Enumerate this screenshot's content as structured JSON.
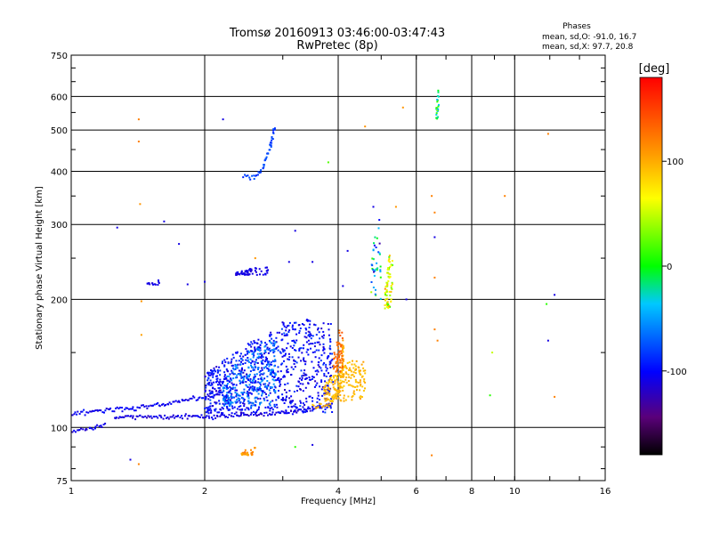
{
  "chart_data": {
    "type": "scatter",
    "title": "Tromsø 20160913 03:46:00-03:47:43",
    "subtitle": "RwPretec (8p)",
    "xlabel": "Frequency [MHz]",
    "ylabel": "Stationary phase Virtual Height [km]",
    "x_scale": "log",
    "y_scale": "log",
    "xlim": [
      1,
      16
    ],
    "ylim": [
      75,
      750
    ],
    "x_ticks": [
      1,
      2,
      4,
      6,
      8,
      10,
      16
    ],
    "x_tick_labels": [
      "1",
      "2",
      "4",
      "6",
      "8",
      "10",
      "16"
    ],
    "y_ticks": [
      75,
      100,
      200,
      300,
      400,
      500,
      600,
      750
    ],
    "y_tick_labels": [
      "75",
      "100",
      "200",
      "300",
      "400",
      "500",
      "600",
      "750"
    ],
    "x_grid": [
      1,
      2,
      4,
      6,
      8,
      10,
      16
    ],
    "y_grid": [
      75,
      100,
      200,
      300,
      400,
      500,
      600,
      750
    ],
    "phases": {
      "heading": "Phases",
      "line_o": "mean, sd,O: -91.0, 16.7",
      "line_x": "mean, sd,X:  97.7, 20.8"
    },
    "colorbar": {
      "label": "[deg]",
      "range": [
        -180,
        180
      ],
      "ticks": [
        100,
        0,
        -100
      ],
      "tick_labels": [
        "100",
        "0",
        "-100"
      ]
    },
    "clusters": [
      {
        "kind": "line",
        "points": [
          [
            1.0,
            98
          ],
          [
            1.08,
            99
          ],
          [
            1.14,
            100
          ],
          [
            1.2,
            102
          ]
        ],
        "width": 6,
        "phase": -110
      },
      {
        "kind": "line",
        "points": [
          [
            1.0,
            107
          ],
          [
            1.1,
            109
          ],
          [
            1.24,
            110
          ],
          [
            1.4,
            111
          ],
          [
            1.6,
            113
          ],
          [
            1.8,
            116
          ],
          [
            2.0,
            118
          ],
          [
            2.2,
            121
          ]
        ],
        "width": 8,
        "phase": -105
      },
      {
        "kind": "line",
        "points": [
          [
            1.25,
            106
          ],
          [
            1.5,
            106
          ],
          [
            1.8,
            106
          ],
          [
            2.1,
            106
          ],
          [
            2.5,
            107
          ],
          [
            2.9,
            108
          ],
          [
            3.2,
            109
          ],
          [
            3.6,
            111
          ],
          [
            3.9,
            114
          ]
        ],
        "width": 7,
        "phase": -110
      },
      {
        "kind": "band",
        "x": [
          2.0,
          3.9
        ],
        "y": [
          108,
          180
        ],
        "n": 900,
        "phase": -100,
        "spread": 30
      },
      {
        "kind": "band",
        "x": [
          2.2,
          2.9
        ],
        "y": [
          112,
          160
        ],
        "n": 200,
        "phase": -60,
        "spread": 20
      },
      {
        "kind": "line",
        "points": [
          [
            3.5,
            112
          ],
          [
            3.75,
            112
          ],
          [
            3.95,
            117
          ],
          [
            4.05,
            125
          ],
          [
            4.1,
            140
          ],
          [
            4.1,
            160
          ]
        ],
        "width": 9,
        "phase": 95
      },
      {
        "kind": "band",
        "x": [
          3.7,
          4.6
        ],
        "y": [
          115,
          145
        ],
        "n": 180,
        "phase": 95,
        "spread": 15
      },
      {
        "kind": "band",
        "x": [
          3.9,
          4.1
        ],
        "y": [
          135,
          170
        ],
        "n": 60,
        "phase": 130,
        "spread": 20
      },
      {
        "kind": "line",
        "points": [
          [
            2.45,
            390
          ],
          [
            2.56,
            385
          ],
          [
            2.7,
            405
          ],
          [
            2.8,
            450
          ],
          [
            2.88,
            510
          ]
        ],
        "width": 10,
        "phase": -80
      },
      {
        "kind": "band",
        "x": [
          2.35,
          2.78
        ],
        "y": [
          228,
          238
        ],
        "n": 60,
        "phase": -110,
        "spread": 10
      },
      {
        "kind": "band",
        "x": [
          5.1,
          5.3
        ],
        "y": [
          190,
          260
        ],
        "n": 70,
        "phase": 60,
        "spread": 70
      },
      {
        "kind": "band",
        "x": [
          4.75,
          5.0
        ],
        "y": [
          200,
          320
        ],
        "n": 40,
        "phase": -40,
        "spread": 120
      },
      {
        "kind": "band",
        "x": [
          6.65,
          6.75
        ],
        "y": [
          530,
          620
        ],
        "n": 25,
        "phase": 0,
        "spread": 60
      },
      {
        "kind": "band",
        "x": [
          2.42,
          2.6
        ],
        "y": [
          86,
          90
        ],
        "n": 30,
        "phase": 110,
        "spread": 25
      },
      {
        "kind": "band",
        "x": [
          1.48,
          1.58
        ],
        "y": [
          216,
          222
        ],
        "n": 14,
        "phase": -110,
        "spread": 10
      }
    ],
    "scatter_points": [
      {
        "x": 1.42,
        "y": 530,
        "phase": 120
      },
      {
        "x": 1.42,
        "y": 470,
        "phase": 120
      },
      {
        "x": 1.43,
        "y": 335,
        "phase": 110
      },
      {
        "x": 1.44,
        "y": 198,
        "phase": 110
      },
      {
        "x": 1.44,
        "y": 165,
        "phase": 105
      },
      {
        "x": 1.42,
        "y": 82,
        "phase": 120
      },
      {
        "x": 1.36,
        "y": 84,
        "phase": -110
      },
      {
        "x": 2.2,
        "y": 530,
        "phase": -110
      },
      {
        "x": 1.62,
        "y": 305,
        "phase": -110
      },
      {
        "x": 1.27,
        "y": 295,
        "phase": -110
      },
      {
        "x": 1.75,
        "y": 270,
        "phase": -110
      },
      {
        "x": 1.83,
        "y": 217,
        "phase": -110
      },
      {
        "x": 2.0,
        "y": 220,
        "phase": -110
      },
      {
        "x": 3.2,
        "y": 290,
        "phase": -110
      },
      {
        "x": 3.5,
        "y": 245,
        "phase": -110
      },
      {
        "x": 3.1,
        "y": 245,
        "phase": -110
      },
      {
        "x": 3.8,
        "y": 420,
        "phase": 20
      },
      {
        "x": 4.6,
        "y": 510,
        "phase": 110
      },
      {
        "x": 5.6,
        "y": 565,
        "phase": 110
      },
      {
        "x": 5.4,
        "y": 330,
        "phase": 110
      },
      {
        "x": 4.2,
        "y": 260,
        "phase": -110
      },
      {
        "x": 4.1,
        "y": 215,
        "phase": -110
      },
      {
        "x": 4.8,
        "y": 330,
        "phase": -110
      },
      {
        "x": 5.7,
        "y": 200,
        "phase": -110
      },
      {
        "x": 6.5,
        "y": 350,
        "phase": 120
      },
      {
        "x": 6.6,
        "y": 320,
        "phase": 120
      },
      {
        "x": 6.6,
        "y": 225,
        "phase": 120
      },
      {
        "x": 6.6,
        "y": 280,
        "phase": -110
      },
      {
        "x": 6.6,
        "y": 170,
        "phase": 120
      },
      {
        "x": 6.5,
        "y": 86,
        "phase": 120
      },
      {
        "x": 6.7,
        "y": 160,
        "phase": 120
      },
      {
        "x": 9.5,
        "y": 350,
        "phase": 120
      },
      {
        "x": 11.9,
        "y": 490,
        "phase": 120
      },
      {
        "x": 12.3,
        "y": 205,
        "phase": -110
      },
      {
        "x": 11.8,
        "y": 195,
        "phase": 10
      },
      {
        "x": 11.9,
        "y": 160,
        "phase": -110
      },
      {
        "x": 12.3,
        "y": 118,
        "phase": 120
      },
      {
        "x": 8.9,
        "y": 150,
        "phase": 50
      },
      {
        "x": 8.8,
        "y": 119,
        "phase": 10
      },
      {
        "x": 3.2,
        "y": 90,
        "phase": 10
      },
      {
        "x": 3.5,
        "y": 91,
        "phase": -110
      },
      {
        "x": 2.6,
        "y": 250,
        "phase": 110
      }
    ]
  }
}
